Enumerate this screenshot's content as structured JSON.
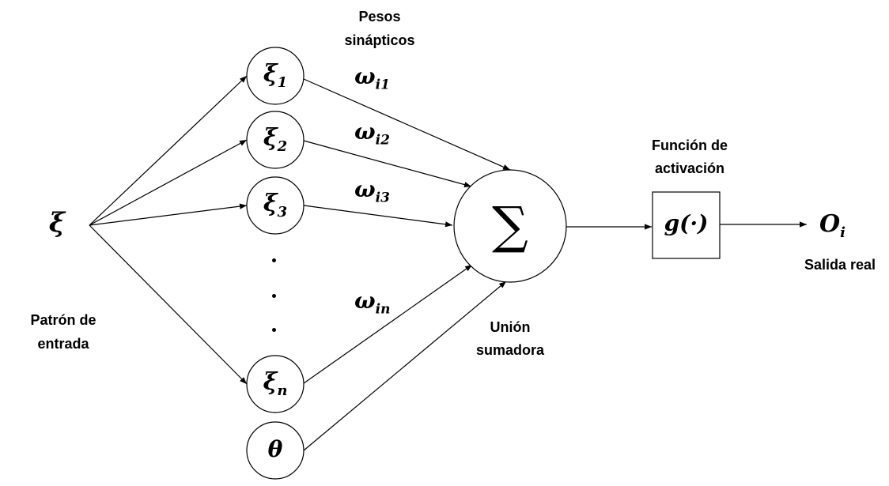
{
  "input_symbol": "ξ",
  "input_caption_line1": "Patrón de",
  "input_caption_line2": "entrada",
  "weights_caption_line1": "Pesos",
  "weights_caption_line2": "sinápticos",
  "nodes": [
    {
      "base": "ξ",
      "sub": "1"
    },
    {
      "base": "ξ",
      "sub": "2"
    },
    {
      "base": "ξ",
      "sub": "3"
    },
    {
      "base": "ξ",
      "sub": "n"
    }
  ],
  "bias": "θ",
  "weights": [
    {
      "base": "ω",
      "sub": "i1"
    },
    {
      "base": "ω",
      "sub": "i2"
    },
    {
      "base": "ω",
      "sub": "i3"
    },
    {
      "base": "ω",
      "sub": "in"
    }
  ],
  "sum_symbol": "∑",
  "sum_caption_line1": "Unión",
  "sum_caption_line2": "sumadora",
  "activation_caption_line1": "Función de",
  "activation_caption_line2": "activación",
  "activation_label": "g(·)",
  "output": {
    "base": "O",
    "sub": "i"
  },
  "output_caption": "Salida real"
}
